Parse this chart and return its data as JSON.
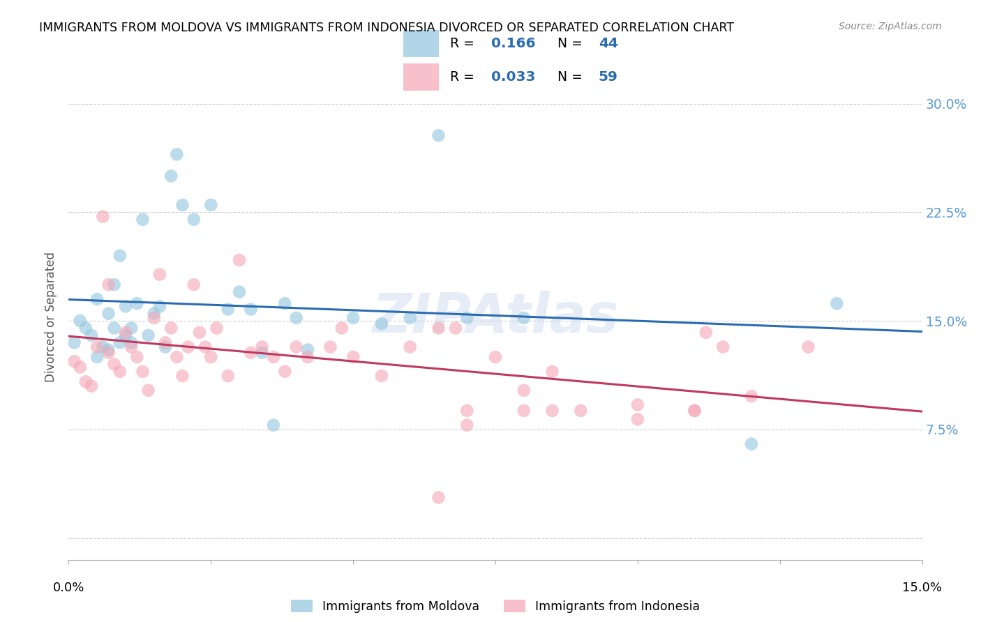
{
  "title": "IMMIGRANTS FROM MOLDOVA VS IMMIGRANTS FROM INDONESIA DIVORCED OR SEPARATED CORRELATION CHART",
  "source": "Source: ZipAtlas.com",
  "ylabel": "Divorced or Separated",
  "xlim": [
    0.0,
    0.15
  ],
  "ylim": [
    -0.015,
    0.32
  ],
  "yticks": [
    0.0,
    0.075,
    0.15,
    0.225,
    0.3
  ],
  "ytick_labels": [
    "",
    "7.5%",
    "15.0%",
    "22.5%",
    "30.0%"
  ],
  "moldova_R": 0.166,
  "moldova_N": 44,
  "indonesia_R": 0.033,
  "indonesia_N": 59,
  "moldova_color": "#92c5de",
  "indonesia_color": "#f4a6b4",
  "moldova_line_color": "#2b6cb0",
  "indonesia_line_color": "#c0395f",
  "legend_label_moldova": "Immigrants from Moldova",
  "legend_label_indonesia": "Immigrants from Indonesia",
  "moldova_x": [
    0.001,
    0.002,
    0.003,
    0.004,
    0.005,
    0.005,
    0.006,
    0.007,
    0.007,
    0.008,
    0.008,
    0.009,
    0.009,
    0.01,
    0.01,
    0.011,
    0.011,
    0.012,
    0.013,
    0.014,
    0.015,
    0.016,
    0.017,
    0.018,
    0.019,
    0.02,
    0.022,
    0.025,
    0.028,
    0.03,
    0.032,
    0.034,
    0.036,
    0.038,
    0.04,
    0.042,
    0.05,
    0.055,
    0.06,
    0.065,
    0.07,
    0.08,
    0.12,
    0.135
  ],
  "moldova_y": [
    0.135,
    0.15,
    0.145,
    0.14,
    0.125,
    0.165,
    0.132,
    0.155,
    0.13,
    0.175,
    0.145,
    0.135,
    0.195,
    0.14,
    0.16,
    0.135,
    0.145,
    0.162,
    0.22,
    0.14,
    0.155,
    0.16,
    0.132,
    0.25,
    0.265,
    0.23,
    0.22,
    0.23,
    0.158,
    0.17,
    0.158,
    0.128,
    0.078,
    0.162,
    0.152,
    0.13,
    0.152,
    0.148,
    0.152,
    0.278,
    0.152,
    0.152,
    0.065,
    0.162
  ],
  "indonesia_x": [
    0.001,
    0.002,
    0.003,
    0.004,
    0.005,
    0.006,
    0.007,
    0.007,
    0.008,
    0.009,
    0.01,
    0.011,
    0.012,
    0.013,
    0.014,
    0.015,
    0.016,
    0.017,
    0.018,
    0.019,
    0.02,
    0.021,
    0.022,
    0.023,
    0.024,
    0.025,
    0.026,
    0.028,
    0.03,
    0.032,
    0.034,
    0.036,
    0.038,
    0.04,
    0.042,
    0.046,
    0.048,
    0.05,
    0.055,
    0.06,
    0.065,
    0.068,
    0.07,
    0.075,
    0.08,
    0.085,
    0.09,
    0.1,
    0.11,
    0.112,
    0.115,
    0.065,
    0.07,
    0.08,
    0.085,
    0.1,
    0.11,
    0.12,
    0.13
  ],
  "indonesia_y": [
    0.122,
    0.118,
    0.108,
    0.105,
    0.132,
    0.222,
    0.175,
    0.128,
    0.12,
    0.115,
    0.142,
    0.132,
    0.125,
    0.115,
    0.102,
    0.152,
    0.182,
    0.135,
    0.145,
    0.125,
    0.112,
    0.132,
    0.175,
    0.142,
    0.132,
    0.125,
    0.145,
    0.112,
    0.192,
    0.128,
    0.132,
    0.125,
    0.115,
    0.132,
    0.125,
    0.132,
    0.145,
    0.125,
    0.112,
    0.132,
    0.145,
    0.145,
    0.088,
    0.125,
    0.102,
    0.115,
    0.088,
    0.092,
    0.088,
    0.142,
    0.132,
    0.028,
    0.078,
    0.088,
    0.088,
    0.082,
    0.088,
    0.098,
    0.132
  ]
}
